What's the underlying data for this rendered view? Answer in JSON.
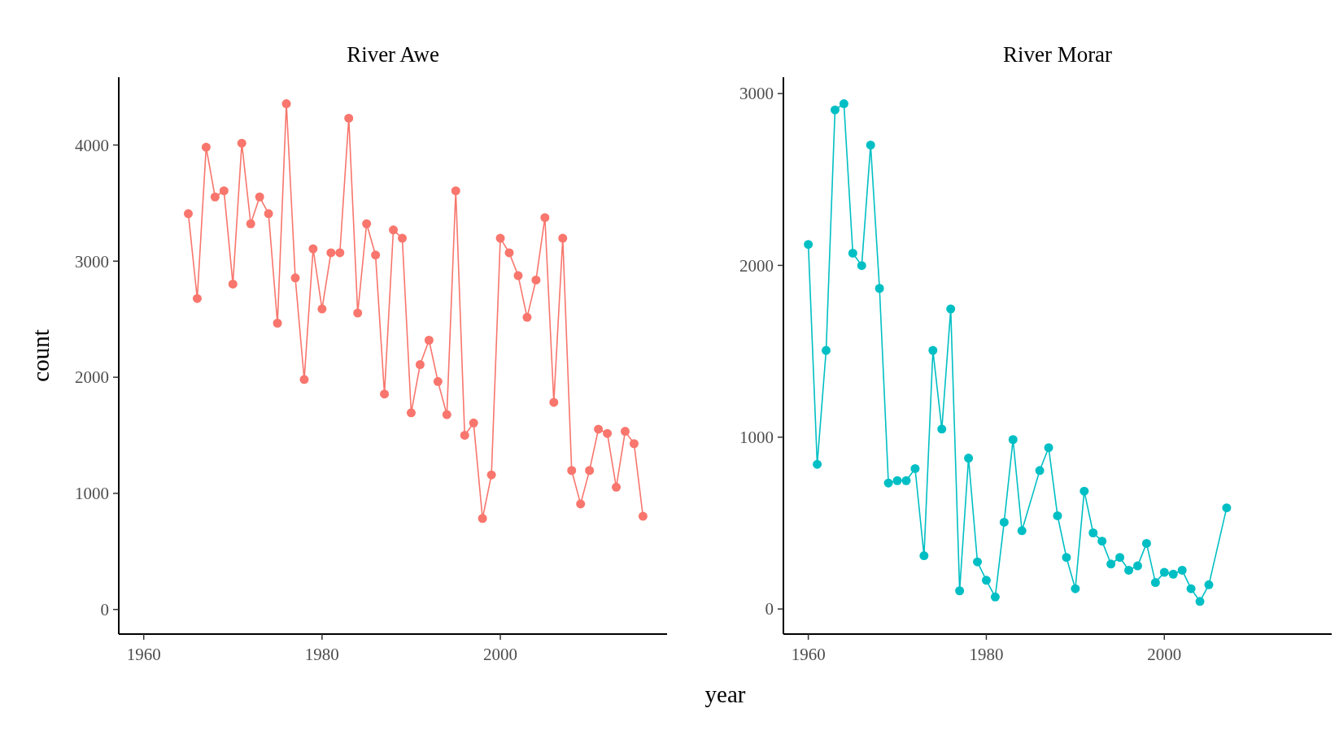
{
  "chart_data": [
    {
      "type": "line",
      "title": "River Awe",
      "xlabel": "year",
      "ylabel": "count",
      "marker": "circle",
      "line_style": "solid",
      "grid": false,
      "xlim": [
        1957.2,
        2018.7
      ],
      "xticks": [
        1960,
        1980,
        2000
      ],
      "ylim": [
        -212,
        4584
      ],
      "yticks": [
        0,
        1000,
        2000,
        3000,
        4000
      ],
      "x": [
        1965,
        1966,
        1967,
        1968,
        1969,
        1970,
        1971,
        1972,
        1973,
        1974,
        1975,
        1976,
        1977,
        1978,
        1979,
        1980,
        1981,
        1982,
        1983,
        1984,
        1985,
        1986,
        1987,
        1988,
        1989,
        1990,
        1991,
        1992,
        1993,
        1994,
        1995,
        1996,
        1997,
        1998,
        1999,
        2000,
        2001,
        2002,
        2003,
        2004,
        2005,
        2006,
        2007,
        2008,
        2009,
        2010,
        2011,
        2012,
        2013,
        2014,
        2015,
        2016
      ],
      "series": [
        {
          "color": "#f8766d",
          "values": [
            3409,
            2678,
            3981,
            3553,
            3606,
            2803,
            4016,
            3322,
            3553,
            3409,
            2466,
            4356,
            2856,
            1981,
            3106,
            2588,
            3072,
            3072,
            4231,
            2553,
            3322,
            3053,
            1856,
            3269,
            3197,
            1694,
            2109,
            2319,
            1963,
            1678,
            3606,
            1500,
            1606,
            784,
            1159,
            3197,
            3072,
            2875,
            2516,
            2838,
            3375,
            1784,
            3197,
            1197,
            909,
            1197,
            1553,
            1516,
            1053,
            1534,
            1428,
            803
          ]
        }
      ]
    },
    {
      "type": "line",
      "title": "River Morar",
      "marker": "circle",
      "line_style": "solid",
      "grid": false,
      "xlim": [
        1957.2,
        2018.8
      ],
      "xticks": [
        1960,
        1980,
        2000
      ],
      "ylim": [
        -146,
        3095
      ],
      "yticks": [
        0,
        1000,
        2000,
        3000
      ],
      "x": [
        1960,
        1961,
        1962,
        1963,
        1964,
        1965,
        1966,
        1967,
        1968,
        1969,
        1970,
        1971,
        1972,
        1973,
        1974,
        1975,
        1976,
        1977,
        1978,
        1979,
        1980,
        1981,
        1982,
        1983,
        1984,
        1986,
        1987,
        1988,
        1989,
        1990,
        1991,
        1992,
        1993,
        1994,
        1995,
        1996,
        1997,
        1998,
        1999,
        2000,
        2001,
        2002,
        2003,
        2004,
        2005,
        2007
      ],
      "series": [
        {
          "color": "#00bfc4",
          "values": [
            2122,
            842,
            1505,
            2905,
            2941,
            2071,
            1999,
            2700,
            1866,
            733,
            747,
            747,
            817,
            310,
            1505,
            1047,
            1746,
            106,
            878,
            274,
            167,
            70,
            505,
            986,
            456,
            806,
            939,
            543,
            300,
            118,
            686,
            443,
            395,
            262,
            300,
            226,
            251,
            382,
            154,
            213,
            203,
            226,
            118,
            44,
            141,
            589
          ]
        }
      ]
    }
  ]
}
